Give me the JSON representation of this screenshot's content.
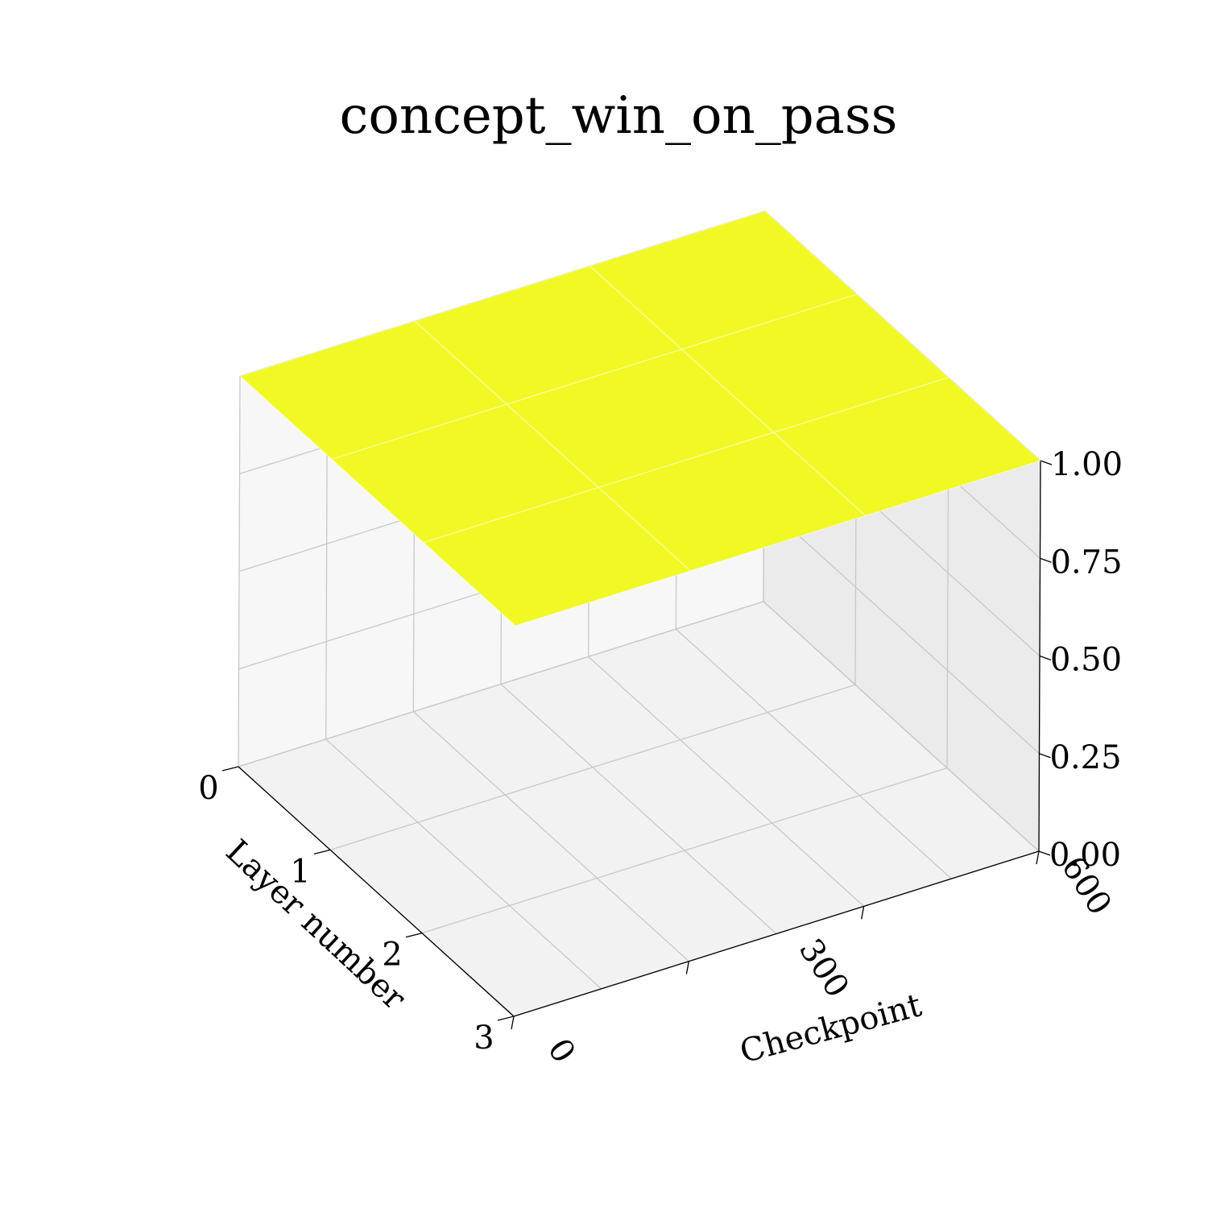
{
  "chart_data": {
    "type": "surface3d",
    "title": "concept_win_on_pass",
    "xlabel": "Checkpoint",
    "ylabel": "Layer number",
    "zlabel": "",
    "x": [
      0,
      200,
      400,
      600
    ],
    "y": [
      0,
      1,
      2,
      3
    ],
    "z": [
      [
        1.0,
        1.0,
        1.0,
        1.0
      ],
      [
        1.0,
        1.0,
        1.0,
        1.0
      ],
      [
        1.0,
        1.0,
        1.0,
        1.0
      ],
      [
        1.0,
        1.0,
        1.0,
        1.0
      ]
    ],
    "xlim": [
      0,
      600
    ],
    "ylim": [
      0,
      3
    ],
    "zlim": [
      0,
      1
    ],
    "xticks": [
      0,
      300,
      600
    ],
    "xtick_labels": [
      "0",
      "300",
      "600"
    ],
    "yticks": [
      0,
      1,
      2,
      3
    ],
    "ytick_labels": [
      "0",
      "1",
      "2",
      "3"
    ],
    "zticks": [
      0,
      0.25,
      0.5,
      0.75,
      1.0
    ],
    "ztick_labels": [
      "0.00",
      "0.25",
      "0.50",
      "0.75",
      "1.00"
    ],
    "grid": true,
    "surface_color": "#f0f924",
    "pane_colors": {
      "floor": "#f2f2f2",
      "back": "#ebebeb",
      "side": "#f7f7f7"
    }
  }
}
